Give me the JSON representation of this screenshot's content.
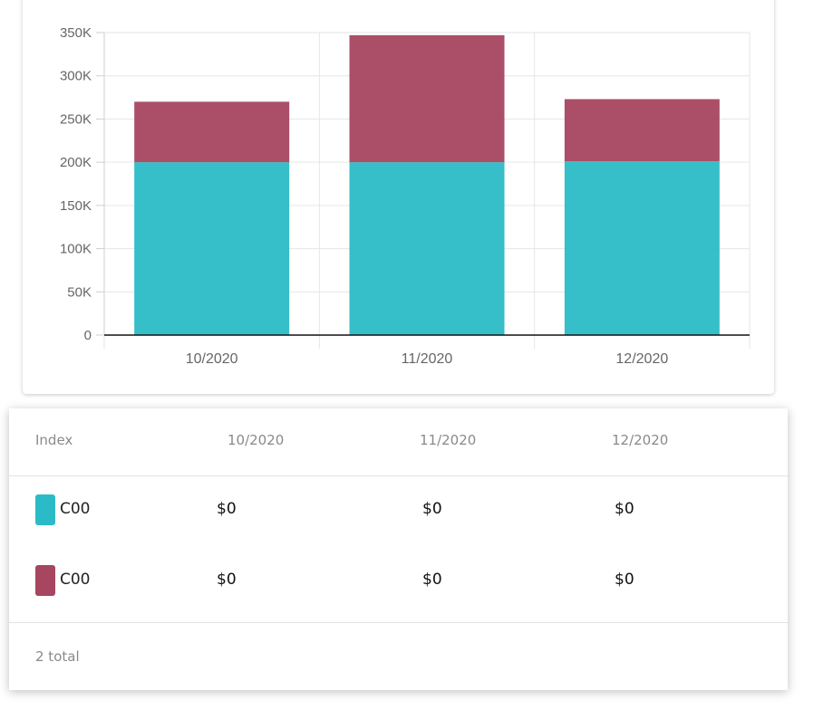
{
  "chart_data": {
    "type": "bar",
    "stacked": true,
    "categories": [
      "10/2020",
      "11/2020",
      "12/2020"
    ],
    "series": [
      {
        "color": "#2bbbc6",
        "values": [
          200000,
          200000,
          201000
        ]
      },
      {
        "color": "#a64660",
        "values": [
          70000,
          147000,
          72000
        ]
      }
    ],
    "ylim": [
      0,
      350000
    ],
    "yticks": [
      0,
      50000,
      100000,
      150000,
      200000,
      250000,
      300000,
      350000
    ],
    "ytick_labels": [
      "0",
      "50K",
      "100K",
      "150K",
      "200K",
      "250K",
      "300K",
      "350K"
    ],
    "grid": true,
    "legend": "none"
  },
  "table": {
    "headers": [
      "Index",
      "10/2020",
      "11/2020",
      "12/2020"
    ],
    "rows": [
      {
        "label": "C00",
        "color": "#2bbbc6",
        "values": [
          "$0",
          "$0",
          "$0"
        ]
      },
      {
        "label": "C00",
        "color": "#a64660",
        "values": [
          "$0",
          "$0",
          "$0"
        ]
      }
    ],
    "footer": "2 total"
  }
}
